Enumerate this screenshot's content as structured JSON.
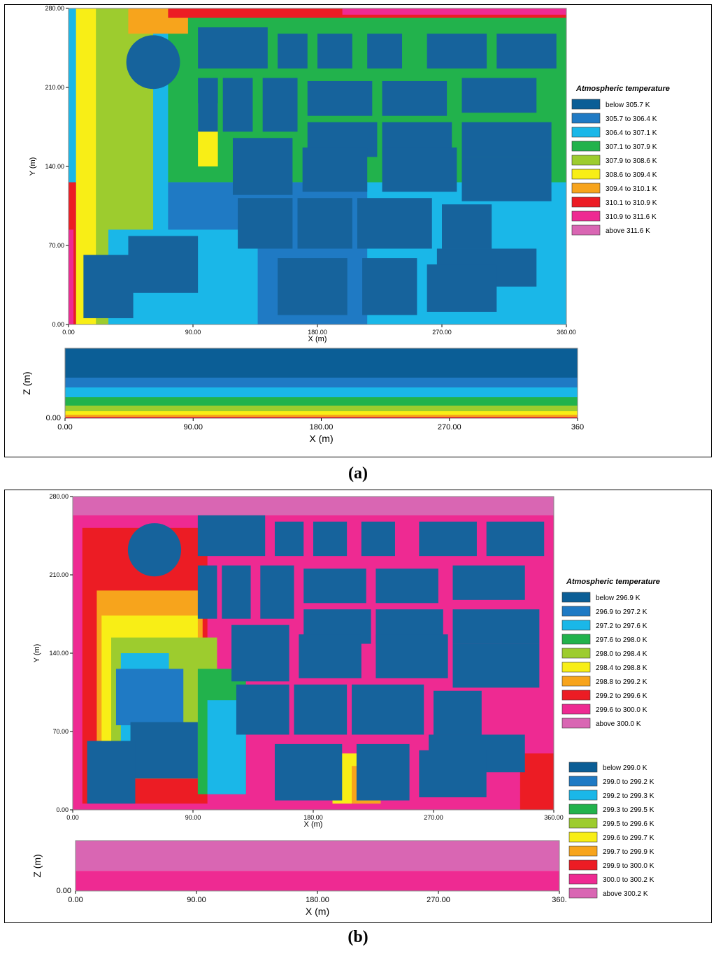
{
  "chart_data": [
    {
      "type": "heatmap",
      "panel_label": "(a)",
      "xlabel": "X (m)",
      "ylabel": "Y (m)",
      "zlabel": "Z (m)",
      "xlim": [
        0,
        360
      ],
      "ylim": [
        0,
        280
      ],
      "x_ticks": [
        "0.00",
        "90.00",
        "180.00",
        "270.00",
        "360.00"
      ],
      "y_ticks": [
        "0.00",
        "70.00",
        "140.00",
        "210.00",
        "280.00"
      ],
      "section_x_ticks": [
        "0.00",
        "90.00",
        "180.00",
        "270.00",
        "360"
      ],
      "section_z_ticks": [
        "0.00"
      ],
      "legends": [
        {
          "title": "Atmospheric temperature",
          "entries": [
            {
              "label": "below 305.7 K",
              "color": "#0b5e96"
            },
            {
              "label": "305.7 to 306.4 K",
              "color": "#1f7ac4"
            },
            {
              "label": "306.4 to 307.1 K",
              "color": "#1ab7e8"
            },
            {
              "label": "307.1 to 307.9 K",
              "color": "#22b24c"
            },
            {
              "label": "307.9 to 308.6 K",
              "color": "#9dcc2e"
            },
            {
              "label": "308.6 to 309.4 K",
              "color": "#f8ee16"
            },
            {
              "label": "309.4 to 310.1 K",
              "color": "#f7a41c"
            },
            {
              "label": "310.1 to 310.9 K",
              "color": "#ec1c24"
            },
            {
              "label": "310.9 to 311.6 K",
              "color": "#ee2a92"
            },
            {
              "label": "above 311.6 K",
              "color": "#d966b3"
            }
          ]
        }
      ]
    },
    {
      "type": "heatmap",
      "panel_label": "(b)",
      "xlabel": "X (m)",
      "ylabel": "Y (m)",
      "zlabel": "Z (m)",
      "xlim": [
        0,
        360
      ],
      "ylim": [
        0,
        280
      ],
      "x_ticks": [
        "0.00",
        "90.00",
        "180.00",
        "270.00",
        "360.00"
      ],
      "y_ticks": [
        "0.00",
        "70.00",
        "140.00",
        "210.00",
        "280.00"
      ],
      "section_x_ticks": [
        "0.00",
        "90.00",
        "180.00",
        "270.00",
        "360."
      ],
      "section_z_ticks": [
        "0.00"
      ],
      "legends": [
        {
          "title": "Atmospheric temperature",
          "entries": [
            {
              "label": "below 296.9 K",
              "color": "#0b5e96"
            },
            {
              "label": "296.9 to 297.2 K",
              "color": "#1f7ac4"
            },
            {
              "label": "297.2 to 297.6 K",
              "color": "#1ab7e8"
            },
            {
              "label": "297.6 to 298.0 K",
              "color": "#22b24c"
            },
            {
              "label": "298.0 to 298.4 K",
              "color": "#9dcc2e"
            },
            {
              "label": "298.4 to 298.8 K",
              "color": "#f8ee16"
            },
            {
              "label": "298.8 to 299.2 K",
              "color": "#f7a41c"
            },
            {
              "label": "299.2 to 299.6 K",
              "color": "#ec1c24"
            },
            {
              "label": "299.6 to 300.0 K",
              "color": "#ee2a92"
            },
            {
              "label": "above 300.0 K",
              "color": "#d966b3"
            }
          ]
        },
        {
          "title": "",
          "entries": [
            {
              "label": "below 299.0 K",
              "color": "#0b5e96"
            },
            {
              "label": "299.0 to 299.2 K",
              "color": "#1f7ac4"
            },
            {
              "label": "299.2 to 299.3 K",
              "color": "#1ab7e8"
            },
            {
              "label": "299.3 to 299.5 K",
              "color": "#22b24c"
            },
            {
              "label": "299.5 to 299.6 K",
              "color": "#9dcc2e"
            },
            {
              "label": "299.6 to 299.7 K",
              "color": "#f8ee16"
            },
            {
              "label": "299.7 to 299.9 K",
              "color": "#f7a41c"
            },
            {
              "label": "299.9 to 300.0 K",
              "color": "#ec1c24"
            },
            {
              "label": "300.0 to 300.2 K",
              "color": "#ee2a92"
            },
            {
              "label": "above 300.2 K",
              "color": "#d966b3"
            }
          ]
        }
      ]
    }
  ]
}
